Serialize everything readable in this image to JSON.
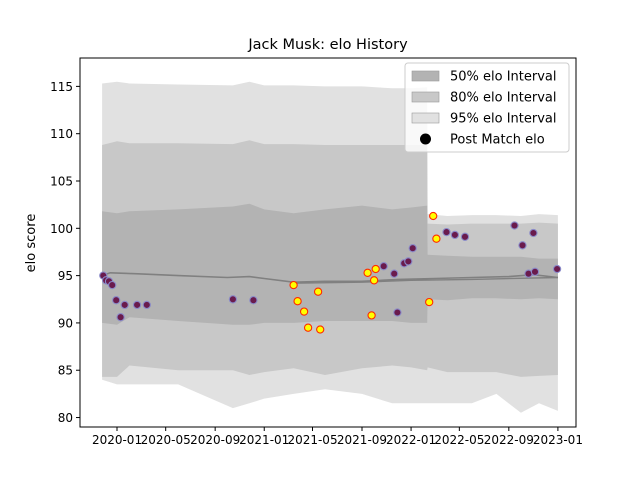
{
  "chart_data": {
    "type": "line",
    "title": "Jack Musk: elo History",
    "xlabel": "",
    "ylabel": "elo score",
    "xlim": [
      "2019-10-01",
      "2023-02-15"
    ],
    "ylim": [
      79,
      118
    ],
    "x_ticks": [
      "2020-01",
      "2020-05",
      "2020-09",
      "2021-01",
      "2021-05",
      "2021-09",
      "2022-01",
      "2022-05",
      "2022-09",
      "2023-01"
    ],
    "y_ticks": [
      80,
      85,
      90,
      95,
      100,
      105,
      110,
      115
    ],
    "grid": false,
    "legend_position": "top-right",
    "legend": [
      {
        "label": "50% elo Interval",
        "kind": "patch",
        "color": "#b3b3b3"
      },
      {
        "label": "80% elo Interval",
        "kind": "patch",
        "color": "#c8c8c8"
      },
      {
        "label": "95% elo Interval",
        "kind": "patch",
        "color": "#e1e1e1"
      },
      {
        "label": "Post Match elo",
        "kind": "marker",
        "color": "#000000"
      }
    ],
    "colors": {
      "band50": "#b3b3b3",
      "band80": "#c8c8c8",
      "band95": "#e1e1e1",
      "mean_line": "#808080",
      "dot_fill_regular": "#6a1b4d",
      "dot_fill_highlight": "#ffff00",
      "dot_edge_regular": "#8a8ac8",
      "dot_edge_highlight": "#ff2a00"
    },
    "series": [
      {
        "kind": "band_95",
        "x": [
          "2019-11-25",
          "2020-01-01",
          "2020-02-01",
          "2020-06-01",
          "2020-10-15",
          "2020-11-25",
          "2021-01-01",
          "2021-03-15",
          "2021-06-01",
          "2021-09-01",
          "2021-11-15",
          "2022-01-01",
          "2022-02-10",
          "2022-02-11",
          "2022-04-01",
          "2022-06-01",
          "2022-08-01",
          "2022-10-01",
          "2022-11-15",
          "2023-01-01"
        ],
        "upper": [
          115.3,
          115.5,
          115.3,
          115.2,
          115.1,
          115.5,
          115.1,
          115.1,
          115.0,
          115.0,
          114.8,
          114.8,
          114.9,
          101.5,
          101.3,
          101.4,
          101.4,
          101.3,
          101.5,
          101.4
        ],
        "lower": [
          84.0,
          83.5,
          83.5,
          83.5,
          81.0,
          81.5,
          82.0,
          82.5,
          83.0,
          82.5,
          81.5,
          81.5,
          81.5,
          81.5,
          81.5,
          81.5,
          82.5,
          80.5,
          81.5,
          80.7
        ]
      },
      {
        "kind": "band_80",
        "x": [
          "2019-11-25",
          "2020-01-01",
          "2020-02-01",
          "2020-06-01",
          "2020-10-15",
          "2020-11-25",
          "2021-01-01",
          "2021-03-15",
          "2021-06-01",
          "2021-09-01",
          "2021-11-15",
          "2022-01-01",
          "2022-02-10",
          "2022-02-11",
          "2022-04-01",
          "2022-06-01",
          "2022-08-01",
          "2022-10-01",
          "2022-11-15",
          "2023-01-01"
        ],
        "upper": [
          108.8,
          109.2,
          109.0,
          109.0,
          108.9,
          109.3,
          108.9,
          108.9,
          108.8,
          108.8,
          108.8,
          108.8,
          108.8,
          100.5,
          100.4,
          100.5,
          100.5,
          100.5,
          100.6,
          100.5
        ],
        "lower": [
          84.3,
          84.3,
          85.5,
          85.0,
          85.0,
          84.5,
          84.8,
          85.2,
          84.5,
          85.2,
          85.5,
          85.3,
          85.0,
          85.3,
          84.8,
          84.8,
          84.8,
          84.3,
          84.4,
          84.5
        ]
      },
      {
        "kind": "band_50",
        "x": [
          "2019-11-25",
          "2020-01-01",
          "2020-02-01",
          "2020-06-01",
          "2020-10-15",
          "2020-11-25",
          "2021-01-01",
          "2021-03-15",
          "2021-06-01",
          "2021-09-01",
          "2021-11-15",
          "2022-01-01",
          "2022-02-10",
          "2022-02-11",
          "2022-04-01",
          "2022-06-01",
          "2022-08-01",
          "2022-10-01",
          "2022-11-15",
          "2023-01-01"
        ],
        "upper": [
          101.8,
          101.6,
          101.8,
          102.0,
          102.3,
          102.6,
          102.0,
          101.6,
          102.0,
          102.4,
          102.0,
          102.2,
          102.4,
          97.2,
          97.1,
          97.0,
          97.0,
          97.0,
          96.8,
          96.8
        ],
        "lower": [
          90.0,
          89.8,
          90.6,
          90.2,
          89.8,
          89.8,
          90.0,
          90.0,
          90.2,
          90.2,
          90.2,
          90.0,
          90.0,
          92.5,
          92.4,
          92.6,
          92.6,
          92.5,
          92.6,
          92.5
        ]
      },
      {
        "kind": "mean_line",
        "x": [
          "2019-11-25",
          "2019-12-15",
          "2020-02-15",
          "2020-06-01",
          "2020-10-01",
          "2020-11-25",
          "2021-01-01",
          "2021-03-15",
          "2021-06-01",
          "2021-09-01",
          "2021-12-01",
          "2022-03-01",
          "2022-06-01",
          "2022-09-01",
          "2022-11-01",
          "2023-01-01"
        ],
        "y": [
          95.0,
          95.3,
          95.2,
          95.0,
          94.8,
          94.9,
          94.7,
          94.3,
          94.4,
          94.4,
          94.6,
          94.7,
          94.8,
          94.9,
          95.1,
          94.8
        ]
      },
      {
        "kind": "base_line",
        "x": [
          "2021-03-15",
          "2021-09-01",
          "2022-01-01",
          "2022-06-01",
          "2023-01-01"
        ],
        "y": [
          94.2,
          94.3,
          94.5,
          94.6,
          94.8
        ]
      },
      {
        "kind": "matches",
        "name": "Post Match elo",
        "points": [
          {
            "x": "2019-11-28",
            "y": 95.0,
            "h": false
          },
          {
            "x": "2019-12-05",
            "y": 94.5,
            "h": false
          },
          {
            "x": "2019-12-12",
            "y": 94.4,
            "h": false
          },
          {
            "x": "2019-12-20",
            "y": 94.0,
            "h": false
          },
          {
            "x": "2019-12-30",
            "y": 92.4,
            "h": false
          },
          {
            "x": "2020-01-10",
            "y": 90.6,
            "h": false
          },
          {
            "x": "2020-01-20",
            "y": 91.9,
            "h": false
          },
          {
            "x": "2020-02-20",
            "y": 91.9,
            "h": false
          },
          {
            "x": "2020-03-15",
            "y": 91.9,
            "h": false
          },
          {
            "x": "2020-10-15",
            "y": 92.5,
            "h": false
          },
          {
            "x": "2020-12-05",
            "y": 92.4,
            "h": false
          },
          {
            "x": "2021-03-15",
            "y": 94.0,
            "h": true
          },
          {
            "x": "2021-03-25",
            "y": 92.3,
            "h": true
          },
          {
            "x": "2021-04-10",
            "y": 91.2,
            "h": true
          },
          {
            "x": "2021-04-20",
            "y": 89.5,
            "h": true
          },
          {
            "x": "2021-05-15",
            "y": 93.3,
            "h": true
          },
          {
            "x": "2021-05-20",
            "y": 89.3,
            "h": true
          },
          {
            "x": "2021-09-15",
            "y": 95.3,
            "h": true
          },
          {
            "x": "2021-09-25",
            "y": 90.8,
            "h": true
          },
          {
            "x": "2021-10-01",
            "y": 94.5,
            "h": true
          },
          {
            "x": "2021-10-05",
            "y": 95.7,
            "h": true
          },
          {
            "x": "2021-10-25",
            "y": 96.0,
            "h": false
          },
          {
            "x": "2021-11-20",
            "y": 95.2,
            "h": false
          },
          {
            "x": "2021-11-28",
            "y": 91.1,
            "h": false
          },
          {
            "x": "2021-12-15",
            "y": 96.3,
            "h": false
          },
          {
            "x": "2021-12-25",
            "y": 96.5,
            "h": false
          },
          {
            "x": "2022-01-05",
            "y": 97.9,
            "h": false
          },
          {
            "x": "2022-02-15",
            "y": 92.2,
            "h": true
          },
          {
            "x": "2022-02-25",
            "y": 101.3,
            "h": true
          },
          {
            "x": "2022-03-05",
            "y": 98.9,
            "h": true
          },
          {
            "x": "2022-03-30",
            "y": 99.6,
            "h": false
          },
          {
            "x": "2022-04-20",
            "y": 99.3,
            "h": false
          },
          {
            "x": "2022-05-15",
            "y": 99.1,
            "h": false
          },
          {
            "x": "2022-09-15",
            "y": 100.3,
            "h": false
          },
          {
            "x": "2022-10-05",
            "y": 98.2,
            "h": false
          },
          {
            "x": "2022-10-20",
            "y": 95.2,
            "h": false
          },
          {
            "x": "2022-11-01",
            "y": 99.5,
            "h": false
          },
          {
            "x": "2022-11-05",
            "y": 95.4,
            "h": false
          },
          {
            "x": "2022-12-30",
            "y": 95.7,
            "h": false
          }
        ]
      }
    ]
  }
}
